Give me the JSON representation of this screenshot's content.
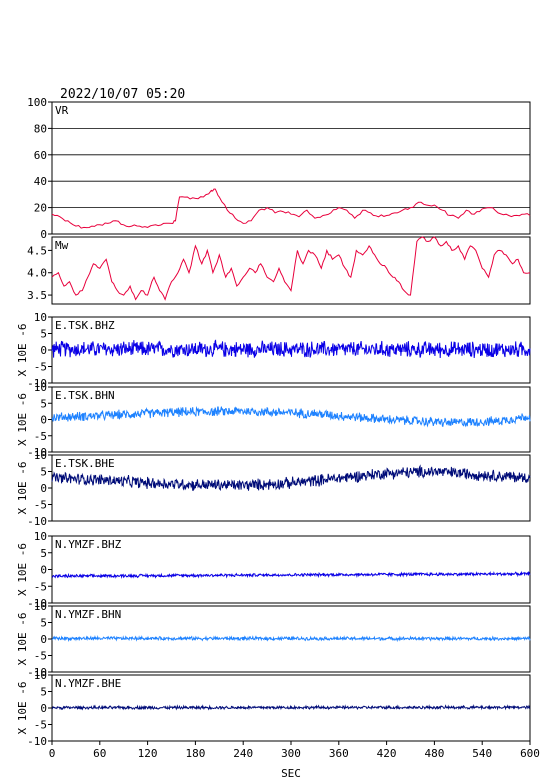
{
  "title": "2022/10/07 05:20",
  "chart_data": {
    "type": "line",
    "title": "2022/10/07 05:20",
    "xlabel": "SEC",
    "xlim": [
      0,
      600
    ],
    "xticks": [
      "0",
      "60",
      "120",
      "180",
      "240",
      "300",
      "360",
      "420",
      "480",
      "540",
      "600"
    ],
    "panels": [
      {
        "name": "VR",
        "color": "#e8003c",
        "ylim": [
          0,
          100
        ],
        "grid": true,
        "yticks": [
          "0",
          "20",
          "40",
          "60",
          "80",
          "100"
        ],
        "ylabel": "",
        "x": [
          0,
          10,
          20,
          30,
          40,
          50,
          60,
          70,
          80,
          90,
          100,
          110,
          120,
          130,
          140,
          150,
          155,
          160,
          170,
          180,
          190,
          200,
          205,
          210,
          220,
          230,
          240,
          250,
          260,
          270,
          280,
          290,
          300,
          310,
          320,
          330,
          340,
          350,
          360,
          370,
          380,
          390,
          400,
          410,
          420,
          430,
          440,
          450,
          460,
          470,
          480,
          490,
          500,
          510,
          520,
          530,
          540,
          550,
          560,
          570,
          580,
          590,
          600
        ],
        "values": [
          15,
          13,
          10,
          6,
          5,
          6,
          7,
          8,
          10,
          7,
          6,
          6,
          5,
          7,
          8,
          8,
          10,
          28,
          28,
          27,
          28,
          33,
          34,
          28,
          18,
          12,
          8,
          10,
          18,
          20,
          16,
          17,
          15,
          13,
          18,
          12,
          14,
          16,
          20,
          18,
          12,
          18,
          16,
          13,
          14,
          16,
          18,
          20,
          24,
          22,
          22,
          18,
          14,
          12,
          18,
          15,
          19,
          20,
          16,
          15,
          14,
          15,
          14
        ]
      },
      {
        "name": "Mw",
        "color": "#e8003c",
        "ylim": [
          3.3,
          4.8
        ],
        "grid": false,
        "yticks": [
          "3.5",
          "4.0",
          "4.5"
        ],
        "ylabel": "",
        "x": [
          0,
          8,
          15,
          22,
          30,
          38,
          45,
          52,
          60,
          68,
          75,
          82,
          90,
          98,
          105,
          112,
          120,
          128,
          135,
          142,
          150,
          158,
          165,
          172,
          180,
          188,
          195,
          202,
          210,
          218,
          225,
          232,
          240,
          248,
          255,
          262,
          270,
          278,
          285,
          292,
          300,
          308,
          315,
          322,
          330,
          338,
          345,
          352,
          360,
          368,
          375,
          382,
          390,
          398,
          405,
          412,
          420,
          428,
          435,
          442,
          450,
          458,
          465,
          472,
          480,
          488,
          495,
          502,
          510,
          518,
          525,
          532,
          540,
          548,
          555,
          562,
          570,
          578,
          585,
          592,
          600
        ],
        "values": [
          3.9,
          4.0,
          3.7,
          3.8,
          3.5,
          3.6,
          3.9,
          4.2,
          4.1,
          4.3,
          3.8,
          3.6,
          3.5,
          3.7,
          3.4,
          3.6,
          3.5,
          3.9,
          3.6,
          3.4,
          3.8,
          4.0,
          4.3,
          4.0,
          4.6,
          4.2,
          4.5,
          4.0,
          4.4,
          3.9,
          4.1,
          3.7,
          3.9,
          4.1,
          4.0,
          4.2,
          3.9,
          3.8,
          4.1,
          3.8,
          3.6,
          4.5,
          4.2,
          4.5,
          4.4,
          4.1,
          4.5,
          4.3,
          4.4,
          4.1,
          3.9,
          4.5,
          4.4,
          4.6,
          4.4,
          4.2,
          4.1,
          3.9,
          3.8,
          3.6,
          3.5,
          4.7,
          4.8,
          4.7,
          4.8,
          4.6,
          4.7,
          4.5,
          4.6,
          4.3,
          4.6,
          4.5,
          4.1,
          3.9,
          4.4,
          4.5,
          4.4,
          4.2,
          4.3,
          4.0,
          4.0
        ]
      },
      {
        "name": "E.TSK.BHZ",
        "color": "#0a00e6",
        "ylim": [
          -10,
          10
        ],
        "yticks": [
          "-10",
          "-5",
          "0",
          "5",
          "10"
        ],
        "ylabel": "X 10E -6",
        "baseline": [
          [
            0,
            0.3
          ],
          [
            600,
            0.1
          ]
        ],
        "amplitude": 2.2
      },
      {
        "name": "E.TSK.BHN",
        "color": "#1e82ff",
        "ylim": [
          -10,
          10
        ],
        "yticks": [
          "-10",
          "-5",
          "0",
          "5",
          "10"
        ],
        "ylabel": "X 10E -6",
        "baseline": [
          [
            0,
            0.6
          ],
          [
            60,
            1.2
          ],
          [
            150,
            2.2
          ],
          [
            240,
            2.6
          ],
          [
            330,
            1.8
          ],
          [
            420,
            0
          ],
          [
            500,
            -1.0
          ],
          [
            560,
            -0.5
          ],
          [
            600,
            1.0
          ]
        ],
        "amplitude": 1.3
      },
      {
        "name": "E.TSK.BHE",
        "color": "#000c78",
        "ylim": [
          -10,
          10
        ],
        "yticks": [
          "-10",
          "-5",
          "0",
          "5",
          "10"
        ],
        "ylabel": "X 10E -6",
        "baseline": [
          [
            0,
            3.0
          ],
          [
            60,
            2.5
          ],
          [
            120,
            1.5
          ],
          [
            180,
            1.0
          ],
          [
            240,
            0.8
          ],
          [
            300,
            1.5
          ],
          [
            360,
            3.0
          ],
          [
            420,
            4.5
          ],
          [
            480,
            5.0
          ],
          [
            540,
            4.0
          ],
          [
            600,
            3.0
          ]
        ],
        "amplitude": 1.6
      },
      {
        "name": "N.YMZF.BHZ",
        "color": "#0a00e6",
        "ylim": [
          -10,
          10
        ],
        "yticks": [
          "-10",
          "-5",
          "0",
          "5",
          "10"
        ],
        "ylabel": "X 10E -6",
        "baseline": [
          [
            0,
            -2.0
          ],
          [
            300,
            -1.6
          ],
          [
            600,
            -1.3
          ]
        ],
        "amplitude": 0.4
      },
      {
        "name": "N.YMZF.BHN",
        "color": "#1e82ff",
        "ylim": [
          -10,
          10
        ],
        "yticks": [
          "-10",
          "-5",
          "0",
          "5",
          "10"
        ],
        "ylabel": "X 10E -6",
        "baseline": [
          [
            0,
            0.2
          ],
          [
            600,
            0.1
          ]
        ],
        "amplitude": 0.45
      },
      {
        "name": "N.YMZF.BHE",
        "color": "#000c78",
        "ylim": [
          -10,
          10
        ],
        "yticks": [
          "-10",
          "-5",
          "0",
          "5",
          "10"
        ],
        "ylabel": "X 10E -6",
        "baseline": [
          [
            0,
            0.1
          ],
          [
            600,
            0.2
          ]
        ],
        "amplitude": 0.4
      }
    ]
  }
}
